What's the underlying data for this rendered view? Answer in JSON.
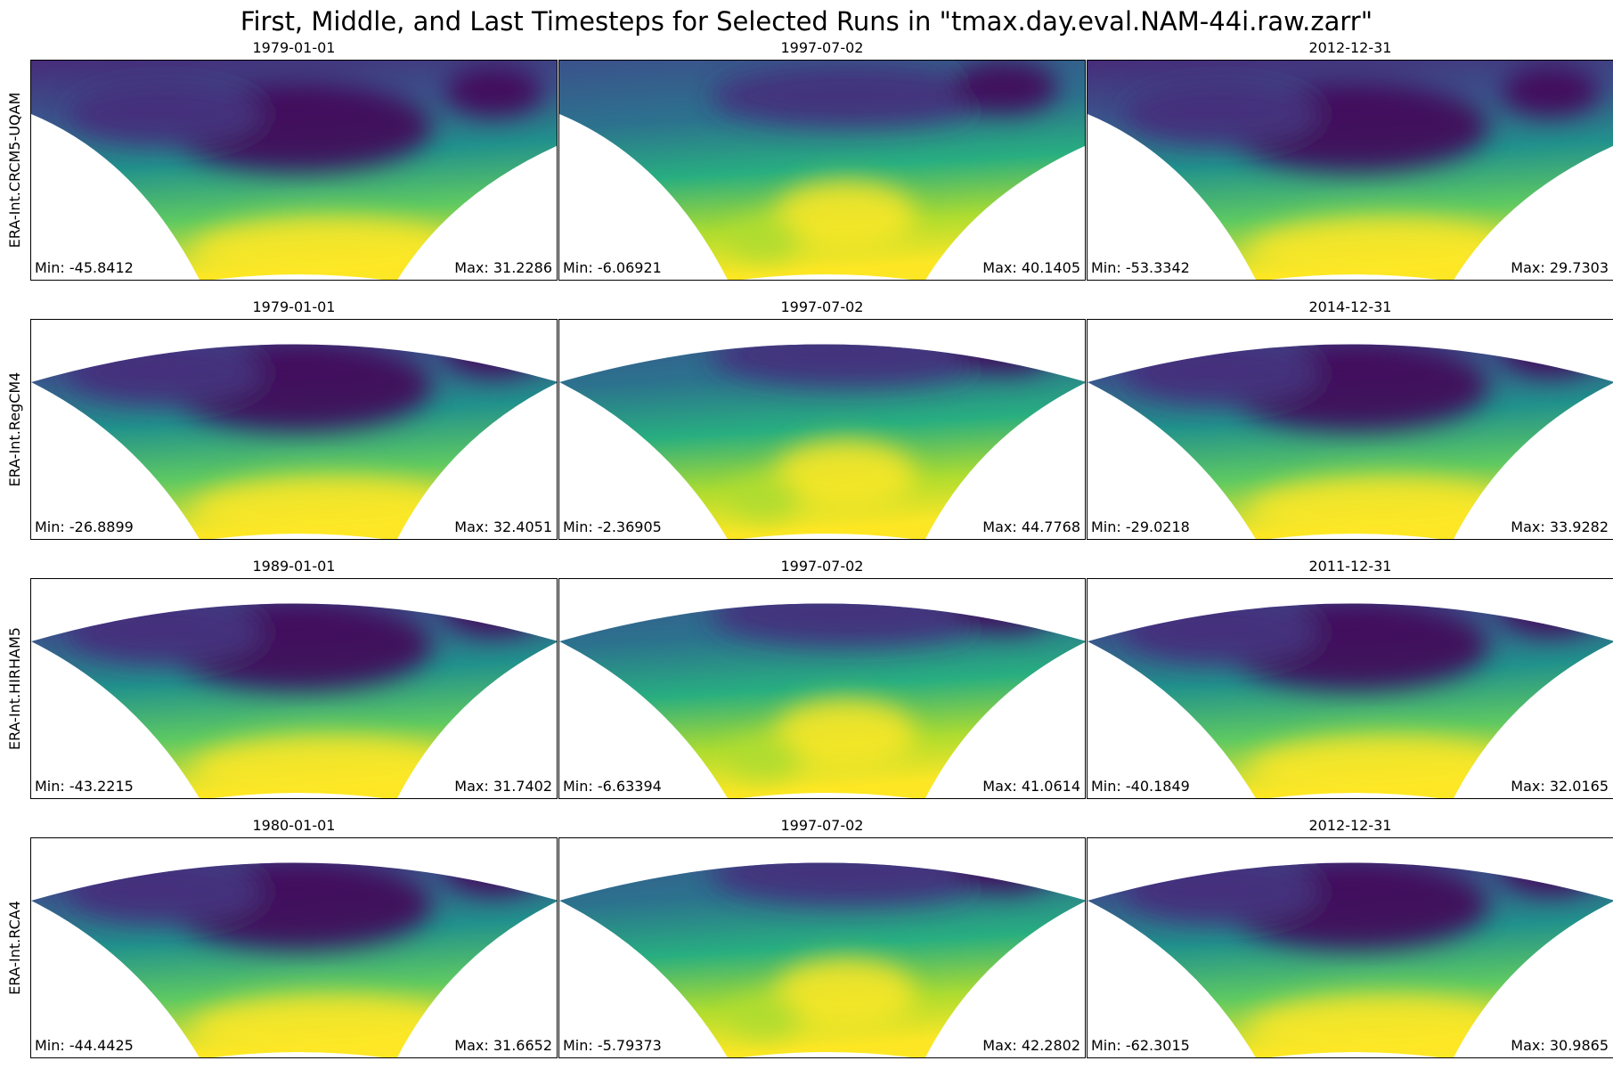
{
  "title": "First, Middle, and Last Timesteps for Selected Runs in \"tmax.day.eval.NAM-44i.raw.zarr\"",
  "chart_data": {
    "type": "heatmap",
    "colormap": "viridis",
    "rows": [
      {
        "name": "ERA-Int.CRCM5-UQAM",
        "panels": [
          {
            "date": "1979-01-01",
            "min": "-45.8412",
            "max": "31.2286"
          },
          {
            "date": "1997-07-02",
            "min": "-6.06921",
            "max": "40.1405"
          },
          {
            "date": "2012-12-31",
            "min": "-53.3342",
            "max": "29.7303"
          }
        ]
      },
      {
        "name": "ERA-Int.RegCM4",
        "panels": [
          {
            "date": "1979-01-01",
            "min": "-26.8899",
            "max": "32.4051"
          },
          {
            "date": "1997-07-02",
            "min": "-2.36905",
            "max": "44.7768"
          },
          {
            "date": "2014-12-31",
            "min": "-29.0218",
            "max": "33.9282"
          }
        ]
      },
      {
        "name": "ERA-Int.HIRHAM5",
        "panels": [
          {
            "date": "1989-01-01",
            "min": "-43.2215",
            "max": "31.7402"
          },
          {
            "date": "1997-07-02",
            "min": "-6.63394",
            "max": "41.0614"
          },
          {
            "date": "2011-12-31",
            "min": "-40.1849",
            "max": "32.0165"
          }
        ]
      },
      {
        "name": "ERA-Int.RCA4",
        "panels": [
          {
            "date": "1980-01-01",
            "min": "-44.4425",
            "max": "31.6652"
          },
          {
            "date": "1997-07-02",
            "min": "-5.79373",
            "max": "42.2802"
          },
          {
            "date": "2012-12-31",
            "min": "-62.3015",
            "max": "30.9865"
          }
        ]
      }
    ]
  }
}
